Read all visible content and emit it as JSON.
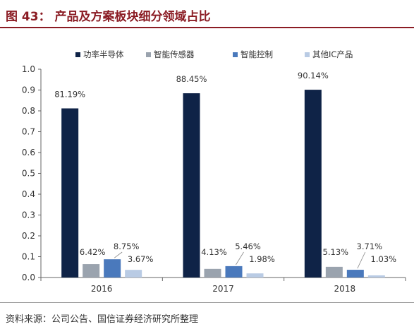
{
  "header": {
    "title": "图 43：  产品及方案板块细分领域占比"
  },
  "footer": {
    "source": "资料来源：公司公告、国信证券经济研究所整理"
  },
  "chart_data": {
    "type": "bar",
    "categories": [
      "2016",
      "2017",
      "2018"
    ],
    "series": [
      {
        "name": "功率半导体",
        "color": "#0f2347",
        "values": [
          0.8119,
          0.8845,
          0.9014
        ],
        "labels": [
          "81.19%",
          "88.45%",
          "90.14%"
        ]
      },
      {
        "name": "智能传感器",
        "color": "#9aa3ae",
        "values": [
          0.0642,
          0.0413,
          0.0513
        ],
        "labels": [
          "6.42%",
          "4.13%",
          "5.13%"
        ]
      },
      {
        "name": "智能控制",
        "color": "#4a79bc",
        "values": [
          0.0875,
          0.0546,
          0.0371
        ],
        "labels": [
          "8.75%",
          "5.46%",
          "3.71%"
        ]
      },
      {
        "name": "其他IC产品",
        "color": "#b9cbe4",
        "values": [
          0.0367,
          0.0198,
          0.0103
        ],
        "labels": [
          "3.67%",
          "1.98%",
          "1.03%"
        ]
      }
    ],
    "ylim": [
      0,
      1.0
    ],
    "yticks": [
      "0.0",
      "0.1",
      "0.2",
      "0.3",
      "0.4",
      "0.5",
      "0.6",
      "0.7",
      "0.8",
      "0.9",
      "1.0"
    ],
    "legend_position": "top",
    "grid": false
  }
}
